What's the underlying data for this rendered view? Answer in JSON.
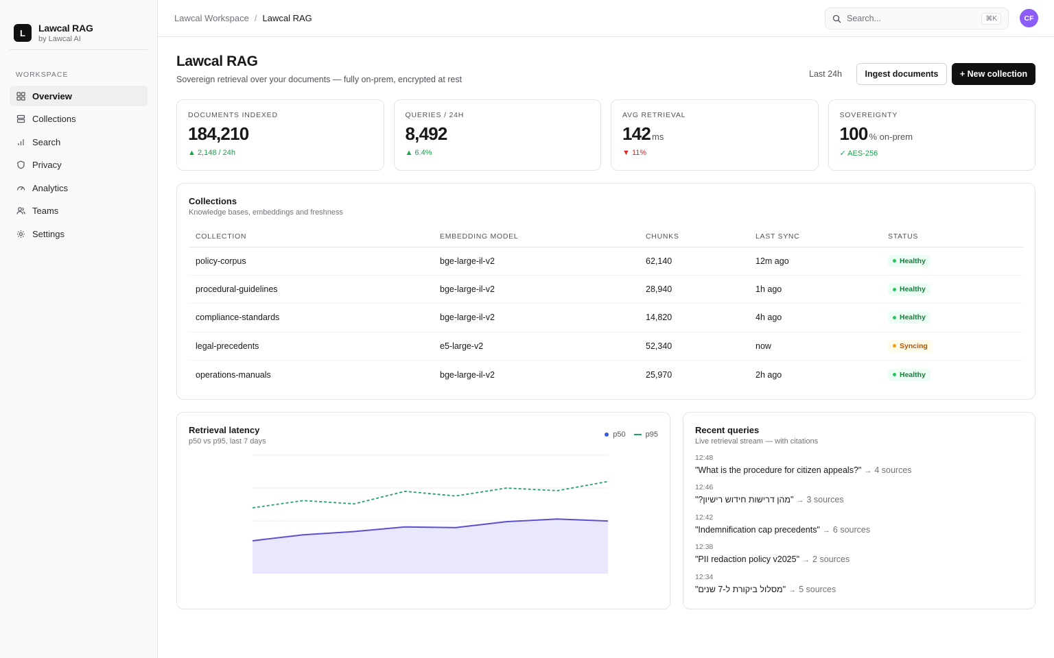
{
  "brand": {
    "logo_letter": "L",
    "name": "Lawcal RAG",
    "sub": "by Lawcal AI"
  },
  "sidebar": {
    "section_label": "WORKSPACE",
    "items": [
      {
        "label": "Overview",
        "icon": "grid-icon",
        "active": true
      },
      {
        "label": "Collections",
        "icon": "stack-icon"
      },
      {
        "label": "Search",
        "icon": "bar-chart-icon"
      },
      {
        "label": "Privacy",
        "icon": "shield-icon"
      },
      {
        "label": "Analytics",
        "icon": "gauge-icon"
      },
      {
        "label": "Teams",
        "icon": "users-icon"
      },
      {
        "label": "Settings",
        "icon": "gear-icon"
      }
    ]
  },
  "topbar": {
    "breadcrumb": [
      "Lawcal Workspace",
      "Lawcal RAG"
    ],
    "breadcrumb_sep": "/",
    "search_placeholder": "Search...",
    "search_shortcut": "⌘K",
    "avatar_initials": "CF",
    "avatar_color": "#8b5cf6"
  },
  "header": {
    "title": "Lawcal RAG",
    "subtitle": "Sovereign retrieval over your documents — fully on-prem, encrypted at rest",
    "range": "Last 24h",
    "ingest_label": "Ingest documents",
    "new_collection_label": "+ New collection"
  },
  "kpis": [
    {
      "label": "DOCUMENTS INDEXED",
      "value": "184,210",
      "unit": "",
      "delta": "▲ 2,148 / 24h",
      "trend": "up"
    },
    {
      "label": "QUERIES / 24H",
      "value": "8,492",
      "unit": "",
      "delta": "▲ 6.4%",
      "trend": "up"
    },
    {
      "label": "AVG RETRIEVAL",
      "value": "142",
      "unit": "ms",
      "delta": "▼ 11%",
      "trend": "down"
    },
    {
      "label": "SOVEREIGNTY",
      "value": "100",
      "unit": "% on-prem",
      "delta": "✓ AES-256",
      "trend": "up"
    }
  ],
  "collections": {
    "title": "Collections",
    "subtitle": "Knowledge bases, embeddings and freshness",
    "columns": [
      "COLLECTION",
      "EMBEDDING MODEL",
      "CHUNKS",
      "LAST SYNC",
      "STATUS"
    ],
    "rows": [
      {
        "name": "policy-corpus",
        "model": "bge-large-il-v2",
        "chunks": "62,140",
        "sync": "12m ago",
        "status": "Healthy"
      },
      {
        "name": "procedural-guidelines",
        "model": "bge-large-il-v2",
        "chunks": "28,940",
        "sync": "1h ago",
        "status": "Healthy"
      },
      {
        "name": "compliance-standards",
        "model": "bge-large-il-v2",
        "chunks": "14,820",
        "sync": "4h ago",
        "status": "Healthy"
      },
      {
        "name": "legal-precedents",
        "model": "e5-large-v2",
        "chunks": "52,340",
        "sync": "now",
        "status": "Syncing"
      },
      {
        "name": "operations-manuals",
        "model": "bge-large-il-v2",
        "chunks": "25,970",
        "sync": "2h ago",
        "status": "Healthy"
      }
    ],
    "status_colors": {
      "Healthy": "#22c55e",
      "Syncing": "#f59e0b"
    }
  },
  "latency": {
    "title": "Retrieval latency",
    "subtitle": "p50 vs p95, last 7 days",
    "legend": [
      "p50",
      "p95"
    ]
  },
  "chart_data": {
    "type": "area",
    "title": "Retrieval latency",
    "subtitle": "p50 vs p95, last 7 days",
    "x": [
      1,
      2,
      3,
      4,
      5,
      6,
      7,
      8
    ],
    "series": [
      {
        "name": "p50",
        "values": [
          100,
          118,
          128,
          142,
          140,
          158,
          166,
          160
        ],
        "color": "#5b4fcf",
        "style": "solid-area"
      },
      {
        "name": "p95",
        "values": [
          200,
          222,
          212,
          250,
          236,
          260,
          252,
          280
        ],
        "color": "#22a06b",
        "style": "dashed"
      }
    ],
    "ylim": [
      0,
      360
    ],
    "grid": true,
    "legend": "top-right"
  },
  "queries": {
    "title": "Recent queries",
    "subtitle": "Live retrieval stream — with citations",
    "items": [
      {
        "time": "12:48",
        "text": "\"What is the procedure for citizen appeals?\"",
        "sources": "4 sources"
      },
      {
        "time": "12:46",
        "text": "\"מהן דרישות חידוש רישיון?\"",
        "sources": "3 sources"
      },
      {
        "time": "12:42",
        "text": "\"Indemnification cap precedents\"",
        "sources": "6 sources"
      },
      {
        "time": "12:38",
        "text": "\"PII redaction policy v2025\"",
        "sources": "2 sources"
      },
      {
        "time": "12:34",
        "text": "\"מסלול ביקורת ל-7 שנים\"",
        "sources": "5 sources"
      }
    ],
    "arrow": "→"
  }
}
